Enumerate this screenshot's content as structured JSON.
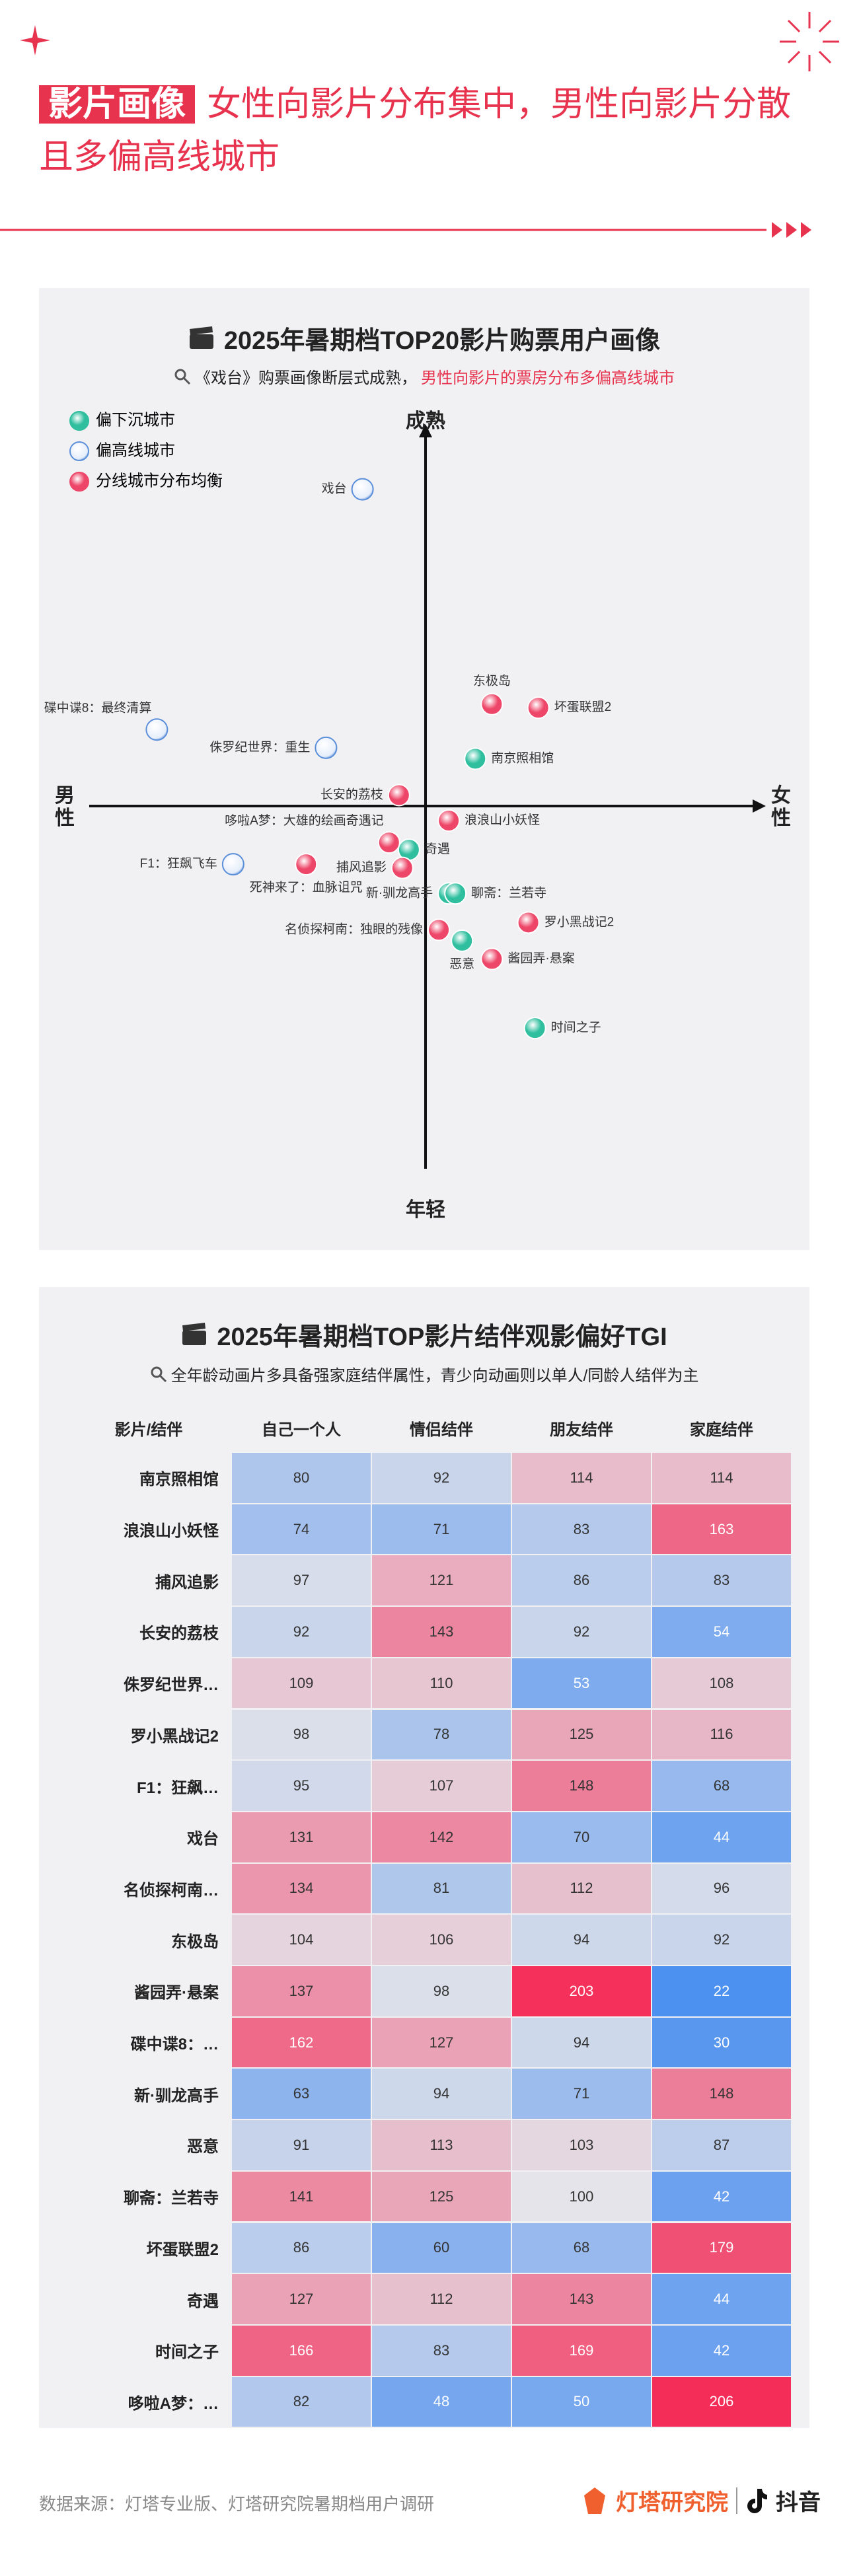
{
  "header": {
    "tag": "影片画像",
    "title": "女性向影片分布集中，男性向影片分散且多偏高线城市"
  },
  "chart_data": [
    {
      "type": "scatter",
      "title": "2025年暑期档TOP20影片购票用户画像",
      "subtitle": "《戏台》购票画像断层式成熟，",
      "subtitle_highlight": "男性向影片的票房分布多偏高线城市",
      "x_label_left": "男性",
      "x_label_right": "女性",
      "y_label_top": "成熟",
      "y_label_bottom": "年轻",
      "xlim": [
        -100,
        100
      ],
      "ylim": [
        -100,
        100
      ],
      "legend": "top-left",
      "series": [
        {
          "name": "偏下沉城市",
          "color": "#2fbf9f",
          "labels": [
            "南京照相馆",
            "奇遇",
            "新·驯龙高手",
            "聊斋：兰若寺",
            "恶意",
            "时间之子"
          ],
          "x": [
            15,
            -5,
            7,
            9,
            11,
            33
          ],
          "y": [
            13,
            -12,
            -24,
            -24,
            -37,
            -61
          ]
        },
        {
          "name": "偏高线城市",
          "color": "#5b8fd9",
          "labels": [
            "戏台",
            "碟中谍8：最终清算",
            "侏罗纪世界：重生",
            "F1：狂飙飞车"
          ],
          "x": [
            -19,
            -81,
            -30,
            -58
          ],
          "y": [
            87,
            21,
            16,
            -16
          ]
        },
        {
          "name": "分线城市分布均衡",
          "color": "#ee4668",
          "labels": [
            "东极岛",
            "坏蛋联盟2",
            "长安的荔枝",
            "浪浪山小妖怪",
            "哆啦A梦：大雄的绘画奇遇记",
            "捕风追影",
            "死神来了：血脉诅咒",
            "罗小黑战记2",
            "名侦探柯南：独眼的残像",
            "酱园弄·悬案"
          ],
          "x": [
            20,
            34,
            -8,
            7,
            -11,
            -7,
            -36,
            31,
            4,
            20
          ],
          "y": [
            28,
            27,
            3,
            -4,
            -10,
            -17,
            -16,
            -32,
            -34,
            -42
          ]
        }
      ]
    },
    {
      "type": "heatmap",
      "title": "2025年暑期档TOP影片结伴观影偏好TGI",
      "subtitle": "全年龄动画片多具备强家庭结伴属性，青少向动画则以单人/同龄人结伴为主",
      "corner_label": "影片/结伴",
      "columns": [
        "自己一个人",
        "情侣结伴",
        "朋友结伴",
        "家庭结伴"
      ],
      "rows": [
        "南京照相馆",
        "浪浪山小妖怪",
        "捕风追影",
        "长安的荔枝",
        "侏罗纪世界…",
        "罗小黑战记2",
        "F1：狂飙…",
        "戏台",
        "名侦探柯南…",
        "东极岛",
        "酱园弄·悬案",
        "碟中谍8：…",
        "新·驯龙高手",
        "恶意",
        "聊斋：兰若寺",
        "坏蛋联盟2",
        "奇遇",
        "时间之子",
        "哆啦A梦：…"
      ],
      "values": [
        [
          80,
          92,
          114,
          114
        ],
        [
          74,
          71,
          83,
          163
        ],
        [
          97,
          121,
          86,
          83
        ],
        [
          92,
          143,
          92,
          54
        ],
        [
          109,
          110,
          53,
          108
        ],
        [
          98,
          78,
          125,
          116
        ],
        [
          95,
          107,
          148,
          68
        ],
        [
          131,
          142,
          70,
          44
        ],
        [
          134,
          81,
          112,
          96
        ],
        [
          104,
          106,
          94,
          92
        ],
        [
          137,
          98,
          203,
          22
        ],
        [
          162,
          127,
          94,
          30
        ],
        [
          63,
          94,
          71,
          148
        ],
        [
          91,
          113,
          103,
          87
        ],
        [
          141,
          125,
          100,
          42
        ],
        [
          86,
          60,
          68,
          179
        ],
        [
          127,
          112,
          143,
          44
        ],
        [
          166,
          83,
          169,
          42
        ],
        [
          82,
          48,
          50,
          206
        ]
      ]
    }
  ],
  "footer": {
    "source": "数据来源：灯塔专业版、灯塔研究院暑期档用户调研",
    "brand": "灯塔研究院",
    "brand2": "抖音"
  }
}
